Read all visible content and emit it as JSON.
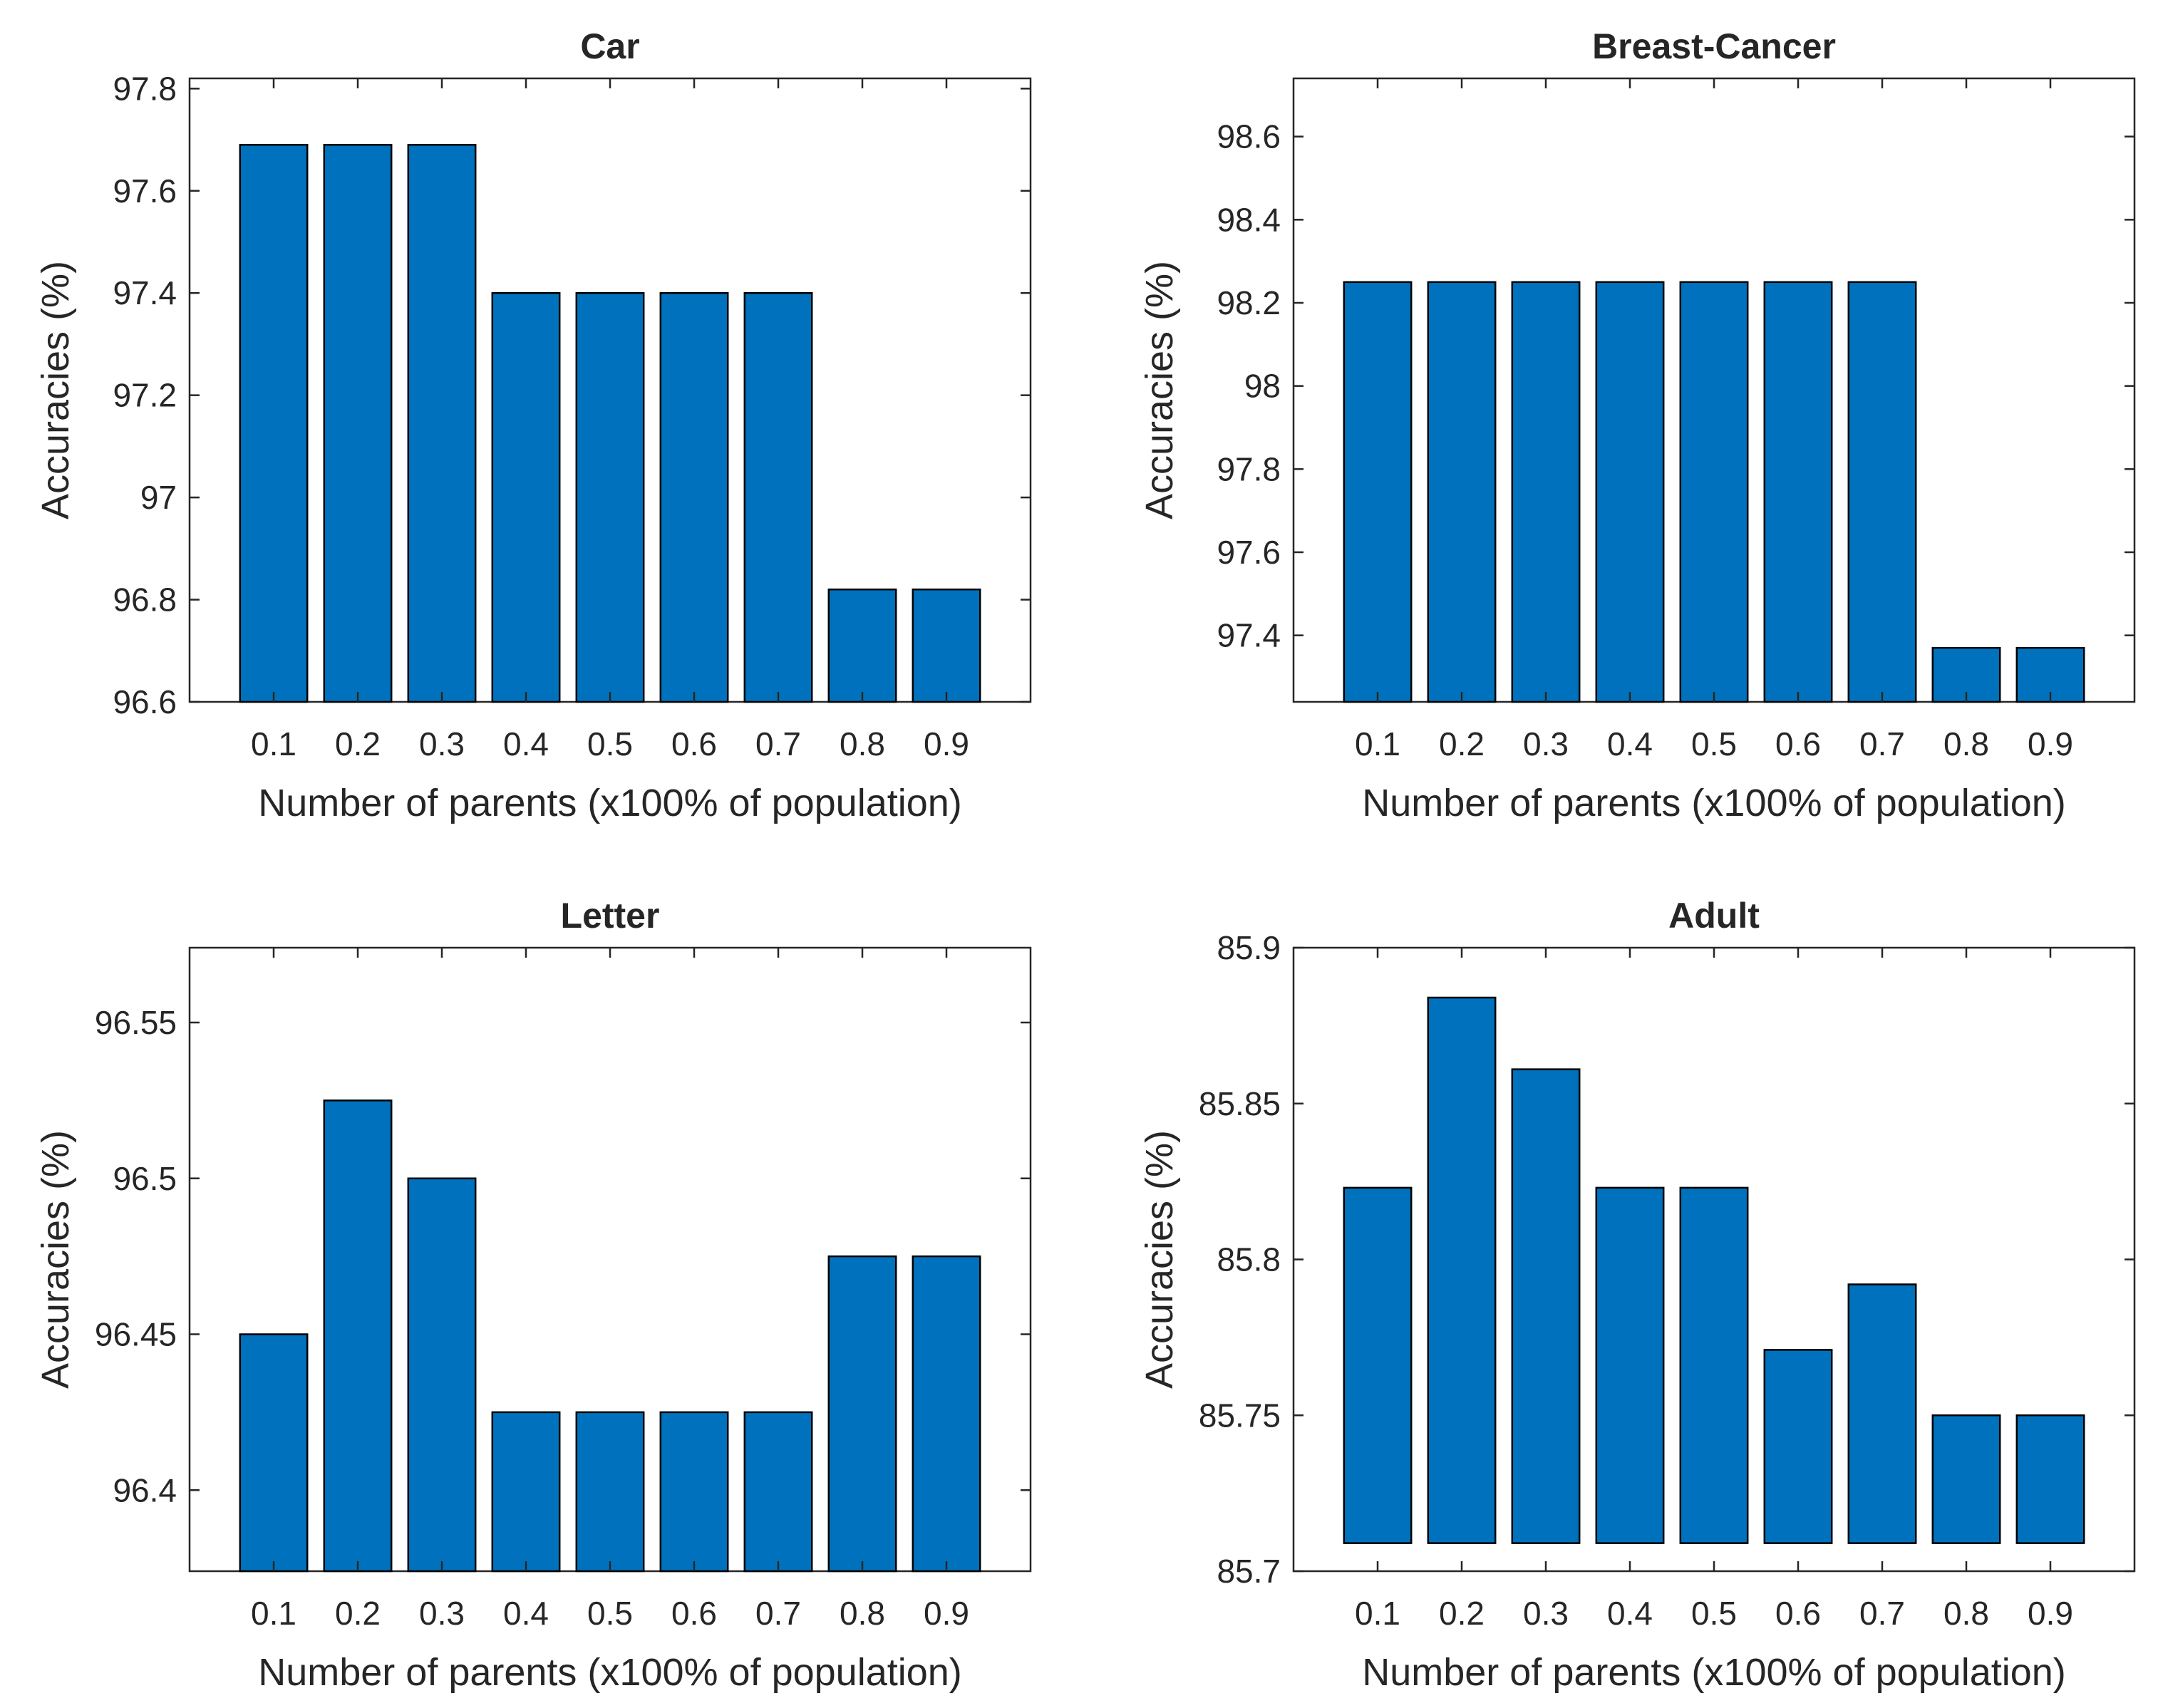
{
  "chart_data": [
    {
      "type": "bar",
      "title": "Car",
      "xlabel": "Number of parents (x100% of population)",
      "ylabel": "Accuracies (%)",
      "categories": [
        "0.1",
        "0.2",
        "0.3",
        "0.4",
        "0.5",
        "0.6",
        "0.7",
        "0.8",
        "0.9"
      ],
      "values": [
        97.69,
        97.69,
        97.69,
        97.4,
        97.4,
        97.4,
        97.4,
        96.82,
        96.82
      ],
      "ylim": [
        96.6,
        97.82
      ],
      "yticks": [
        96.6,
        96.8,
        97,
        97.2,
        97.4,
        97.6,
        97.8
      ],
      "ytick_labels": [
        "96.6",
        "96.8",
        "97",
        "97.2",
        "97.4",
        "97.6",
        "97.8"
      ],
      "grid": false
    },
    {
      "type": "bar",
      "title": "Breast-Cancer",
      "xlabel": "Number of parents (x100% of population)",
      "ylabel": "Accuracies (%)",
      "categories": [
        "0.1",
        "0.2",
        "0.3",
        "0.4",
        "0.5",
        "0.6",
        "0.7",
        "0.8",
        "0.9"
      ],
      "values": [
        98.25,
        98.25,
        98.25,
        98.25,
        98.25,
        98.25,
        98.25,
        97.37,
        97.37
      ],
      "ylim": [
        97.24,
        98.74
      ],
      "yticks": [
        97.4,
        97.6,
        97.8,
        98,
        98.2,
        98.4,
        98.6
      ],
      "ytick_labels": [
        "97.4",
        "97.6",
        "97.8",
        "98",
        "98.2",
        "98.4",
        "98.6"
      ],
      "grid": false
    },
    {
      "type": "bar",
      "title": "Letter",
      "xlabel": "Number of parents (x100% of population)",
      "ylabel": "Accuracies (%)",
      "categories": [
        "0.1",
        "0.2",
        "0.3",
        "0.4",
        "0.5",
        "0.6",
        "0.7",
        "0.8",
        "0.9"
      ],
      "values": [
        96.45,
        96.525,
        96.5,
        96.425,
        96.425,
        96.425,
        96.425,
        96.475,
        96.475
      ],
      "ylim": [
        96.374,
        96.574
      ],
      "yticks": [
        96.4,
        96.45,
        96.5,
        96.55
      ],
      "ytick_labels": [
        "96.4",
        "96.45",
        "96.5",
        "96.55"
      ],
      "grid": false
    },
    {
      "type": "bar",
      "title": "Adult",
      "xlabel": "Number of parents (x100% of population)",
      "ylabel": "Accuracies (%)",
      "categories": [
        "0.1",
        "0.2",
        "0.3",
        "0.4",
        "0.5",
        "0.6",
        "0.7",
        "0.8",
        "0.9"
      ],
      "values": [
        85.823,
        85.884,
        85.861,
        85.823,
        85.823,
        85.771,
        85.792,
        85.75,
        85.75
      ],
      "ylim": [
        85.7,
        85.9
      ],
      "yticks": [
        85.7,
        85.75,
        85.8,
        85.85,
        85.9
      ],
      "ytick_labels": [
        "85.7",
        "85.75",
        "85.8",
        "85.85",
        "85.9"
      ],
      "bar_baseline": 85.709,
      "grid": false
    }
  ],
  "colors": {
    "bar_fill": "#0072BD",
    "bar_edge": "#000000",
    "axis": "#262626"
  }
}
